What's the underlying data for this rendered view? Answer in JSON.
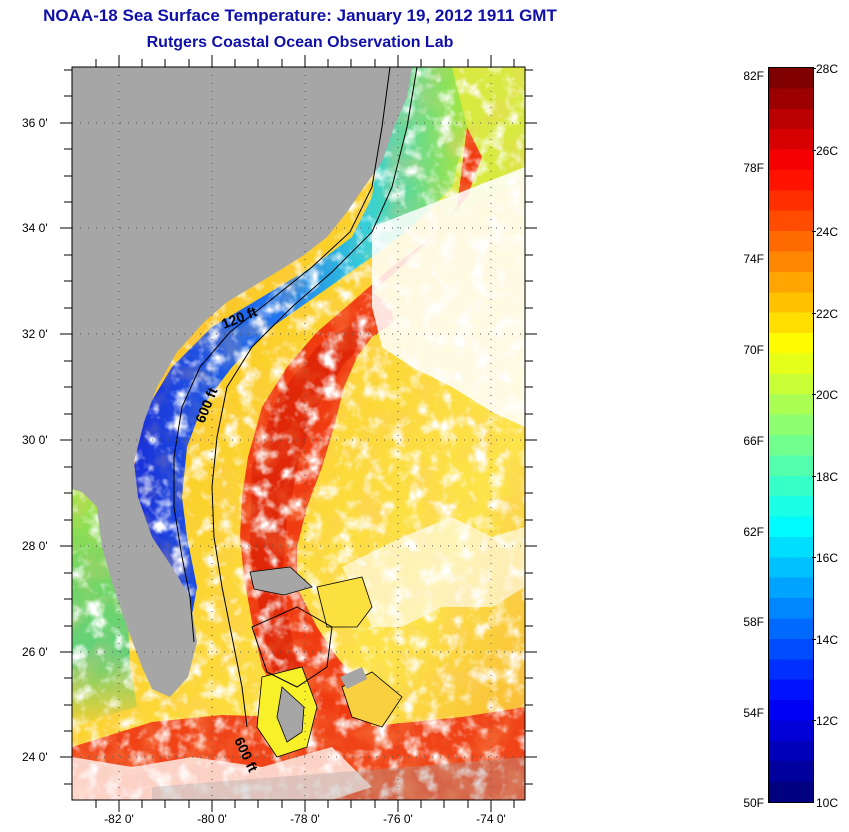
{
  "title": "NOAA-18 Sea Surface Temperature:  January 19, 2012 1911 GMT",
  "subtitle": "Rutgers Coastal Ocean Observation Lab",
  "map": {
    "lon_range": [
      -83,
      -73
    ],
    "lat_range": [
      23,
      37
    ],
    "y_tick_labels": [
      "36 0'",
      "34 0'",
      "32 0'",
      "30 0'",
      "28 0'",
      "26 0'",
      "24 0'"
    ],
    "x_tick_labels": [
      "-82 0'",
      "-80 0'",
      "-78 0'",
      "-76 0'",
      "-74 0'"
    ],
    "contour_labels": [
      "120 ft",
      "600 ft",
      "600 ft"
    ],
    "colors": {
      "land": "#a6a6a6",
      "cloud": "#ffffff",
      "gulf_stream": "#f03a10",
      "warm_offshore": "#fbc82a",
      "shelf_cold": "#1d3fe0",
      "shelf_mid": "#2fc0e0"
    }
  },
  "colorbar": {
    "fahrenheit_labels": [
      "82F",
      "78F",
      "74F",
      "70F",
      "66F",
      "62F",
      "58F",
      "54F",
      "50F"
    ],
    "celsius_labels": [
      "28C",
      "26C",
      "24C",
      "22C",
      "20C",
      "18C",
      "16C",
      "14C",
      "12C",
      "10C"
    ],
    "colormap": "jet",
    "range_c": [
      10,
      28
    ]
  }
}
